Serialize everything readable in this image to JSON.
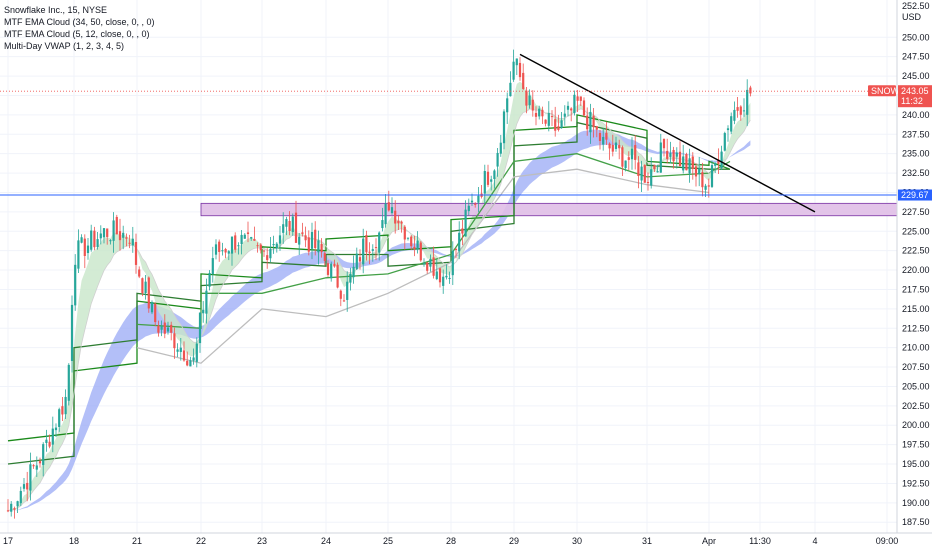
{
  "legend": {
    "symbol": "Snowflake Inc., 15, NYSE",
    "ind1": "MTF EMA Cloud (34, 50, close, 0, , 0)",
    "ind2": "MTF EMA Cloud (5, 12, close, 0, , 0)",
    "ind3": "Multi-Day VWAP (1, 2, 3, 4, 5)"
  },
  "price_axis": {
    "currency": "USD",
    "top_label": "252.50"
  },
  "last_price": {
    "symbol_tag": "SNOW",
    "price": "243.05",
    "countdown": "11:32",
    "value": 243.05
  },
  "horizontal_line": {
    "label": "229.67",
    "value": 229.67,
    "color": "#2962ff"
  },
  "colors": {
    "up": "#26a69a",
    "down": "#ef5350",
    "cloud_green": "#c8e6c9",
    "cloud_red": "#ffcdd2",
    "cloud_blue": "#9aa9f5",
    "zone": "#e1bee7",
    "trendline": "#000000",
    "grid": "#f0f3fa"
  },
  "chart_data": {
    "type": "line",
    "title": "Snowflake Inc., 15, NYSE",
    "y_ticks": [
      187.5,
      190,
      192.5,
      195,
      197.5,
      200,
      202.5,
      205,
      207.5,
      210,
      212.5,
      215,
      217.5,
      220,
      222.5,
      225,
      227.5,
      230,
      232.5,
      235,
      237.5,
      240,
      242.5,
      245,
      247.5,
      250
    ],
    "x_ticks": [
      "17",
      "18",
      "21",
      "22",
      "23",
      "24",
      "25",
      "28",
      "29",
      "30",
      "31",
      "Apr",
      "11:30",
      "4",
      "09:00"
    ],
    "ylim": [
      186.5,
      253
    ],
    "grid": true,
    "support_zone": [
      227,
      228.6
    ],
    "trendline": [
      [
        "29",
        247.8
      ],
      [
        "4",
        227.5
      ]
    ],
    "close_path": [
      [
        "17",
        189
      ],
      [
        "17.5",
        196
      ],
      [
        "17.9",
        204
      ],
      [
        "18",
        222
      ],
      [
        "18.5",
        225
      ],
      [
        "18.9",
        224.5
      ],
      [
        "21",
        220.5
      ],
      [
        "21.3",
        213
      ],
      [
        "21.6",
        211
      ],
      [
        "21.9",
        208
      ],
      [
        "22",
        214
      ],
      [
        "22.2",
        222
      ],
      [
        "22.6",
        224
      ],
      [
        "23",
        222
      ],
      [
        "23.4",
        226
      ],
      [
        "23.9",
        222.5
      ],
      [
        "24",
        221
      ],
      [
        "24.3",
        217
      ],
      [
        "24.6",
        223
      ],
      [
        "24.9",
        225
      ],
      [
        "25",
        229
      ],
      [
        "25.4",
        223.5
      ],
      [
        "25.9",
        219
      ],
      [
        "26",
        217.5
      ],
      [
        "28",
        221
      ],
      [
        "28.3",
        228
      ],
      [
        "28.7",
        234
      ],
      [
        "29",
        247
      ],
      [
        "29.3",
        240
      ],
      [
        "29.7",
        238
      ],
      [
        "30",
        241.5
      ],
      [
        "30.4",
        236
      ],
      [
        "30.8",
        234
      ],
      [
        "31",
        232
      ],
      [
        "31.3",
        236
      ],
      [
        "31.7",
        233
      ],
      [
        "Apr",
        231
      ],
      [
        "Apr.2",
        240
      ],
      [
        "Apr.4",
        243.05
      ]
    ]
  }
}
